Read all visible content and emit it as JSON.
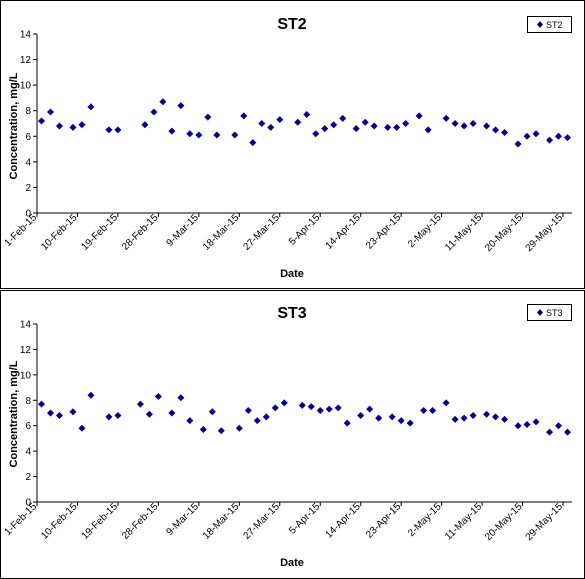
{
  "chart_data": [
    {
      "type": "scatter",
      "title": "ST2",
      "xlabel": "Date",
      "ylabel": "Concentration, mg/L",
      "ylim": [
        0,
        14
      ],
      "yticks": [
        0,
        2,
        4,
        6,
        8,
        10,
        12,
        14
      ],
      "xlim": [
        "1-Feb-15",
        "31-May-15"
      ],
      "xticks": [
        "1-Feb-15",
        "10-Feb-15",
        "19-Feb-15",
        "28-Feb-15",
        "9-Mar-15",
        "18-Mar-15",
        "27-Mar-15",
        "5-Apr-15",
        "14-Apr-15",
        "23-Apr-15",
        "2-May-15",
        "11-May-15",
        "20-May-15",
        "29-May-15"
      ],
      "grid": false,
      "legend": "top-right",
      "marker_color": "#00008b",
      "series": [
        {
          "name": "ST2",
          "x": [
            "2015-02-02",
            "2015-02-04",
            "2015-02-06",
            "2015-02-09",
            "2015-02-11",
            "2015-02-13",
            "2015-02-17",
            "2015-02-19",
            "2015-02-25",
            "2015-02-27",
            "2015-03-01",
            "2015-03-03",
            "2015-03-05",
            "2015-03-07",
            "2015-03-09",
            "2015-03-11",
            "2015-03-13",
            "2015-03-17",
            "2015-03-19",
            "2015-03-21",
            "2015-03-23",
            "2015-03-25",
            "2015-03-27",
            "2015-03-31",
            "2015-04-02",
            "2015-04-04",
            "2015-04-06",
            "2015-04-08",
            "2015-04-10",
            "2015-04-13",
            "2015-04-15",
            "2015-04-17",
            "2015-04-20",
            "2015-04-22",
            "2015-04-24",
            "2015-04-27",
            "2015-04-29",
            "2015-05-03",
            "2015-05-05",
            "2015-05-07",
            "2015-05-09",
            "2015-05-12",
            "2015-05-14",
            "2015-05-16",
            "2015-05-19",
            "2015-05-21",
            "2015-05-23",
            "2015-05-26",
            "2015-05-28",
            "2015-05-30"
          ],
          "y": [
            7.2,
            7.9,
            6.8,
            6.7,
            6.9,
            8.3,
            6.5,
            6.5,
            6.9,
            7.9,
            8.7,
            6.4,
            8.4,
            6.2,
            6.1,
            7.5,
            6.1,
            6.1,
            7.6,
            5.5,
            7.0,
            6.7,
            7.3,
            7.1,
            7.7,
            6.2,
            6.6,
            6.9,
            7.4,
            6.6,
            7.1,
            6.8,
            6.7,
            6.7,
            7.0,
            7.6,
            6.5,
            7.4,
            7.0,
            6.8,
            7.0,
            6.8,
            6.5,
            6.3,
            5.4,
            6.0,
            6.2,
            5.7,
            6.0,
            5.9
          ]
        }
      ]
    },
    {
      "type": "scatter",
      "title": "ST3",
      "xlabel": "Date",
      "ylabel": "Concentration, mg/L",
      "ylim": [
        0,
        14
      ],
      "yticks": [
        0,
        2,
        4,
        6,
        8,
        10,
        12,
        14
      ],
      "xlim": [
        "1-Feb-15",
        "31-May-15"
      ],
      "xticks": [
        "1-Feb-15",
        "10-Feb-15",
        "19-Feb-15",
        "28-Feb-15",
        "9-Mar-15",
        "18-Mar-15",
        "27-Mar-15",
        "5-Apr-15",
        "14-Apr-15",
        "23-Apr-15",
        "2-May-15",
        "11-May-15",
        "20-May-15",
        "29-May-15"
      ],
      "grid": false,
      "legend": "top-right",
      "marker_color": "#00008b",
      "series": [
        {
          "name": "ST3",
          "x": [
            "2015-02-02",
            "2015-02-04",
            "2015-02-06",
            "2015-02-09",
            "2015-02-11",
            "2015-02-13",
            "2015-02-17",
            "2015-02-19",
            "2015-02-24",
            "2015-02-26",
            "2015-02-28",
            "2015-03-03",
            "2015-03-05",
            "2015-03-07",
            "2015-03-10",
            "2015-03-12",
            "2015-03-14",
            "2015-03-18",
            "2015-03-20",
            "2015-03-22",
            "2015-03-24",
            "2015-03-26",
            "2015-03-28",
            "2015-04-01",
            "2015-04-03",
            "2015-04-05",
            "2015-04-07",
            "2015-04-09",
            "2015-04-11",
            "2015-04-14",
            "2015-04-16",
            "2015-04-18",
            "2015-04-21",
            "2015-04-23",
            "2015-04-25",
            "2015-04-28",
            "2015-04-30",
            "2015-05-03",
            "2015-05-05",
            "2015-05-07",
            "2015-05-09",
            "2015-05-12",
            "2015-05-14",
            "2015-05-16",
            "2015-05-19",
            "2015-05-21",
            "2015-05-23",
            "2015-05-26",
            "2015-05-28",
            "2015-05-30"
          ],
          "y": [
            7.7,
            7.0,
            6.8,
            7.1,
            5.8,
            8.4,
            6.7,
            6.8,
            7.7,
            6.9,
            8.3,
            7.0,
            8.2,
            6.4,
            5.7,
            7.1,
            5.6,
            5.8,
            7.2,
            6.4,
            6.7,
            7.4,
            7.8,
            7.6,
            7.5,
            7.2,
            7.3,
            7.4,
            6.2,
            6.8,
            7.3,
            6.6,
            6.7,
            6.4,
            6.2,
            7.2,
            7.2,
            7.8,
            6.5,
            6.6,
            6.8,
            6.9,
            6.7,
            6.5,
            6.0,
            6.1,
            6.3,
            5.5,
            6.0,
            5.5
          ]
        }
      ]
    }
  ]
}
